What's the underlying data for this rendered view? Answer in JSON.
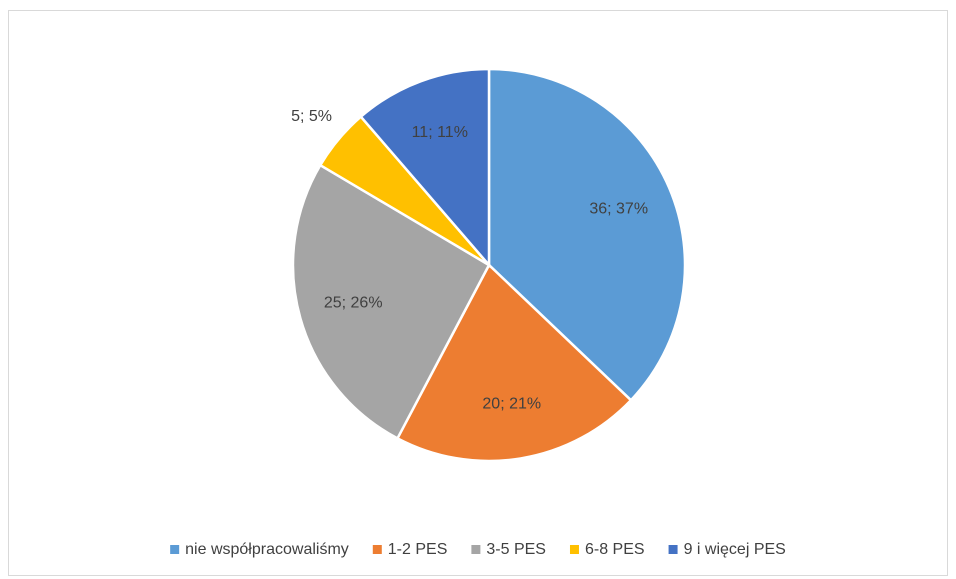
{
  "chart_data": {
    "type": "pie",
    "categories": [
      "nie współpracowaliśmy",
      "1-2 PES",
      "3-5 PES",
      "6-8 PES",
      "9 i więcej PES"
    ],
    "values": [
      36,
      20,
      25,
      5,
      11
    ],
    "value_labels": [
      "36; 37%",
      "20; 21%",
      "25; 26%",
      "5; 5%",
      "11; 11%"
    ],
    "colors": [
      "#5b9bd5",
      "#ed7d31",
      "#a5a5a5",
      "#ffc000",
      "#4472c4"
    ],
    "legend": "bottom"
  }
}
